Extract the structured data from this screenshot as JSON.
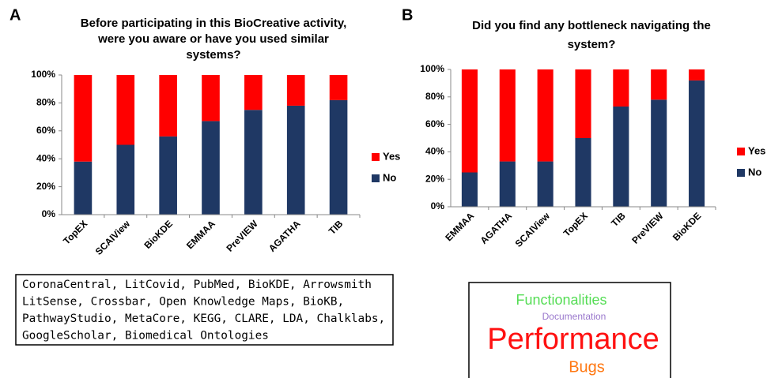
{
  "chart_data": [
    {
      "type": "stacked_bar",
      "label": "A",
      "title": [
        "Before participating in this BioCreative activity,",
        "were you aware or have you used similar",
        "systems?"
      ],
      "categories": [
        "TopEX",
        "SCAIView",
        "BioKDE",
        "EMMAA",
        "PreVIEW",
        "AGATHA",
        "TIB"
      ],
      "series": [
        {
          "name": "No",
          "color": "#1f3864",
          "values": [
            38,
            50,
            56,
            67,
            75,
            78,
            82
          ]
        },
        {
          "name": "Yes",
          "color": "#ff0000",
          "values": [
            62,
            50,
            44,
            33,
            25,
            22,
            18
          ]
        }
      ],
      "ylim": [
        0,
        100
      ],
      "yticks": [
        {
          "value": 0,
          "label": "0%"
        },
        {
          "value": 20,
          "label": "20%"
        },
        {
          "value": 40,
          "label": "40%"
        },
        {
          "value": 60,
          "label": "60%"
        },
        {
          "value": 80,
          "label": "80%"
        },
        {
          "value": 100,
          "label": "100%"
        }
      ],
      "legend": "right"
    },
    {
      "type": "stacked_bar",
      "label": "B",
      "title": [
        "Did you find any bottleneck navigating the",
        "system?"
      ],
      "categories": [
        "EMMAA",
        "AGATHA",
        "SCAIView",
        "TopEX",
        "TIB",
        "PreVIEW",
        "BioKDE"
      ],
      "series": [
        {
          "name": "No",
          "color": "#1f3864",
          "values": [
            25,
            33,
            33,
            50,
            73,
            78,
            92
          ]
        },
        {
          "name": "Yes",
          "color": "#ff0000",
          "values": [
            75,
            67,
            67,
            50,
            27,
            22,
            8
          ]
        }
      ],
      "ylim": [
        0,
        100
      ],
      "yticks": [
        {
          "value": 0,
          "label": "0%"
        },
        {
          "value": 20,
          "label": "20%"
        },
        {
          "value": 40,
          "label": "40%"
        },
        {
          "value": 60,
          "label": "60%"
        },
        {
          "value": 80,
          "label": "80%"
        },
        {
          "value": 100,
          "label": "100%"
        }
      ],
      "legend": "right"
    }
  ],
  "systems_box": {
    "lines": [
      "CoronaCentral, LitCovid, PubMed, BioKDE, Arrowsmith",
      "LitSense, Crossbar, Open Knowledge Maps, BioKB,",
      "PathwayStudio, MetaCore, KEGG, CLARE, LDA, Chalklabs,",
      "GoogleScholar, Biomedical Ontologies"
    ]
  },
  "word_cloud": {
    "words": [
      {
        "text": "Functionalities",
        "color": "#55dd55"
      },
      {
        "text": "Documentation",
        "color": "#9977cc"
      },
      {
        "text": "Performance",
        "color": "#ff1111"
      },
      {
        "text": "Bugs",
        "color": "#ff7711"
      }
    ]
  }
}
